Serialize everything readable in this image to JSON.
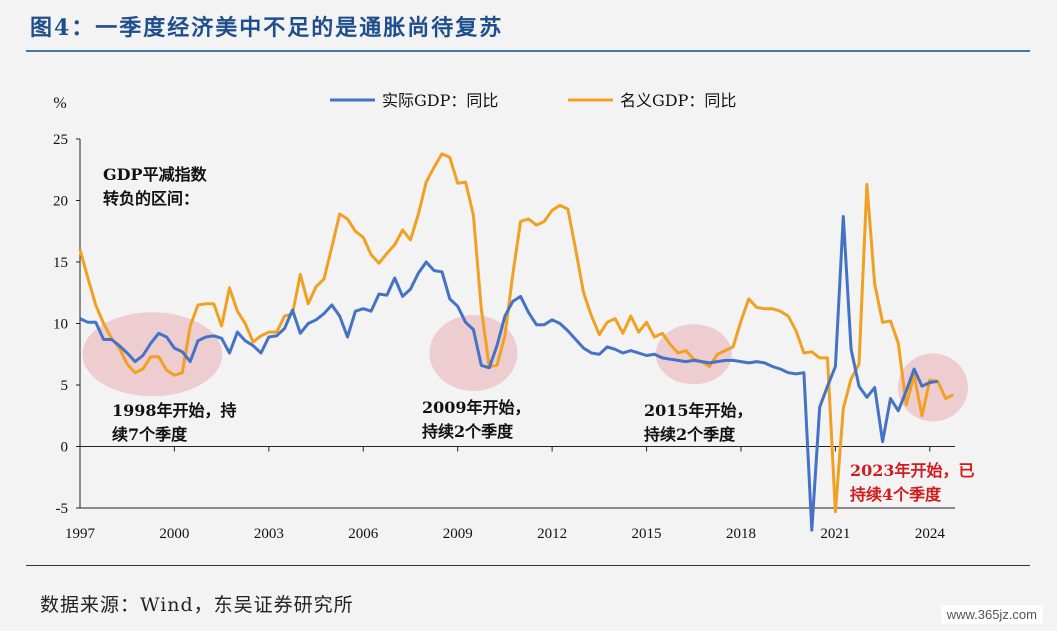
{
  "title": "图4：一季度经济美中不足的是通胀尚待复苏",
  "source": "数据来源：Wind，东吴证券研究所",
  "watermark": "www.365jz.com",
  "chart_data": {
    "type": "line",
    "ylabel": "%",
    "ylim": [
      -5,
      25
    ],
    "yticks": [
      -5,
      0,
      5,
      10,
      15,
      20,
      25
    ],
    "xlim": [
      1997,
      2024.8
    ],
    "xticks": [
      1997,
      2000,
      2003,
      2006,
      2009,
      2012,
      2015,
      2018,
      2021,
      2024
    ],
    "legend_position": "top",
    "colors": {
      "real": "#4472c4",
      "nominal": "#f0a022",
      "highlight": "#e8a0a8"
    },
    "series": [
      {
        "name": "实际GDP：同比",
        "points": [
          [
            1997.0,
            10.4
          ],
          [
            1997.25,
            10.1
          ],
          [
            1997.5,
            10.1
          ],
          [
            1997.75,
            8.7
          ],
          [
            1998.0,
            8.7
          ],
          [
            1998.25,
            8.2
          ],
          [
            1998.5,
            7.6
          ],
          [
            1998.75,
            6.9
          ],
          [
            1999.0,
            7.4
          ],
          [
            1999.25,
            8.4
          ],
          [
            1999.5,
            9.2
          ],
          [
            1999.75,
            8.9
          ],
          [
            2000.0,
            8.0
          ],
          [
            2000.25,
            7.7
          ],
          [
            2000.5,
            6.9
          ],
          [
            2000.75,
            8.6
          ],
          [
            2001.0,
            8.9
          ],
          [
            2001.25,
            9.0
          ],
          [
            2001.5,
            8.8
          ],
          [
            2001.75,
            7.6
          ],
          [
            2002.0,
            9.3
          ],
          [
            2002.25,
            8.6
          ],
          [
            2002.5,
            8.2
          ],
          [
            2002.75,
            7.6
          ],
          [
            2003.0,
            8.9
          ],
          [
            2003.25,
            9.0
          ],
          [
            2003.5,
            9.6
          ],
          [
            2003.75,
            11.1
          ],
          [
            2004.0,
            9.2
          ],
          [
            2004.25,
            10.0
          ],
          [
            2004.5,
            10.3
          ],
          [
            2004.75,
            10.8
          ],
          [
            2005.0,
            11.5
          ],
          [
            2005.25,
            10.6
          ],
          [
            2005.5,
            8.9
          ],
          [
            2005.75,
            11.0
          ],
          [
            2006.0,
            11.2
          ],
          [
            2006.25,
            11.0
          ],
          [
            2006.5,
            12.4
          ],
          [
            2006.75,
            12.3
          ],
          [
            2007.0,
            13.7
          ],
          [
            2007.25,
            12.2
          ],
          [
            2007.5,
            12.8
          ],
          [
            2007.75,
            14.1
          ],
          [
            2008.0,
            15.0
          ],
          [
            2008.25,
            14.3
          ],
          [
            2008.5,
            14.2
          ],
          [
            2008.75,
            12.0
          ],
          [
            2009.0,
            11.4
          ],
          [
            2009.25,
            10.1
          ],
          [
            2009.5,
            9.5
          ],
          [
            2009.75,
            6.6
          ],
          [
            2010.0,
            6.4
          ],
          [
            2010.25,
            8.2
          ],
          [
            2010.5,
            10.6
          ],
          [
            2010.75,
            11.8
          ],
          [
            2011.0,
            12.2
          ],
          [
            2011.25,
            10.9
          ],
          [
            2011.5,
            9.9
          ],
          [
            2011.75,
            9.9
          ],
          [
            2012.0,
            10.3
          ],
          [
            2012.25,
            10.0
          ],
          [
            2012.5,
            9.4
          ],
          [
            2012.75,
            8.7
          ],
          [
            2013.0,
            8.0
          ],
          [
            2013.25,
            7.6
          ],
          [
            2013.5,
            7.5
          ],
          [
            2013.75,
            8.1
          ],
          [
            2014.0,
            7.9
          ],
          [
            2014.25,
            7.6
          ],
          [
            2014.5,
            7.8
          ],
          [
            2014.75,
            7.6
          ],
          [
            2015.0,
            7.4
          ],
          [
            2015.25,
            7.5
          ],
          [
            2015.5,
            7.2
          ],
          [
            2015.75,
            7.1
          ],
          [
            2016.0,
            7.0
          ],
          [
            2016.25,
            6.9
          ],
          [
            2016.5,
            7.0
          ],
          [
            2016.75,
            6.9
          ],
          [
            2017.0,
            6.8
          ],
          [
            2017.25,
            6.9
          ],
          [
            2017.5,
            7.0
          ],
          [
            2017.75,
            7.0
          ],
          [
            2018.0,
            6.9
          ],
          [
            2018.25,
            6.8
          ],
          [
            2018.5,
            6.9
          ],
          [
            2018.75,
            6.8
          ],
          [
            2019.0,
            6.5
          ],
          [
            2019.25,
            6.3
          ],
          [
            2019.5,
            6.0
          ],
          [
            2019.75,
            5.9
          ],
          [
            2020.0,
            6.0
          ],
          [
            2020.25,
            -6.8
          ],
          [
            2020.5,
            3.2
          ],
          [
            2020.75,
            4.9
          ],
          [
            2021.0,
            6.5
          ],
          [
            2021.25,
            18.7
          ],
          [
            2021.5,
            7.9
          ],
          [
            2021.75,
            4.9
          ],
          [
            2022.0,
            4.0
          ],
          [
            2022.25,
            4.8
          ],
          [
            2022.5,
            0.4
          ],
          [
            2022.75,
            3.9
          ],
          [
            2023.0,
            2.9
          ],
          [
            2023.25,
            4.5
          ],
          [
            2023.5,
            6.3
          ],
          [
            2023.75,
            4.9
          ],
          [
            2024.0,
            5.2
          ],
          [
            2024.25,
            5.3
          ]
        ]
      },
      {
        "name": "名义GDP：同比",
        "points": [
          [
            1997.0,
            16.0
          ],
          [
            1997.25,
            13.7
          ],
          [
            1997.5,
            11.5
          ],
          [
            1997.75,
            10.0
          ],
          [
            1998.0,
            8.8
          ],
          [
            1998.25,
            8.0
          ],
          [
            1998.5,
            6.7
          ],
          [
            1998.75,
            6.0
          ],
          [
            1999.0,
            6.3
          ],
          [
            1999.25,
            7.3
          ],
          [
            1999.5,
            7.3
          ],
          [
            1999.75,
            6.2
          ],
          [
            2000.0,
            5.8
          ],
          [
            2000.25,
            6.0
          ],
          [
            2000.5,
            9.8
          ],
          [
            2000.75,
            11.5
          ],
          [
            2001.0,
            11.6
          ],
          [
            2001.25,
            11.6
          ],
          [
            2001.5,
            9.8
          ],
          [
            2001.75,
            12.9
          ],
          [
            2002.0,
            11.0
          ],
          [
            2002.25,
            10.0
          ],
          [
            2002.5,
            8.5
          ],
          [
            2002.75,
            9.0
          ],
          [
            2003.0,
            9.3
          ],
          [
            2003.25,
            9.3
          ],
          [
            2003.5,
            10.6
          ],
          [
            2003.75,
            10.8
          ],
          [
            2004.0,
            14.0
          ],
          [
            2004.25,
            11.6
          ],
          [
            2004.5,
            13.0
          ],
          [
            2004.75,
            13.6
          ],
          [
            2005.0,
            16.2
          ],
          [
            2005.25,
            18.9
          ],
          [
            2005.5,
            18.5
          ],
          [
            2005.75,
            17.5
          ],
          [
            2006.0,
            17.0
          ],
          [
            2006.25,
            15.6
          ],
          [
            2006.5,
            14.9
          ],
          [
            2006.75,
            15.7
          ],
          [
            2007.0,
            16.4
          ],
          [
            2007.25,
            17.6
          ],
          [
            2007.5,
            16.8
          ],
          [
            2007.75,
            18.9
          ],
          [
            2008.0,
            21.5
          ],
          [
            2008.25,
            22.7
          ],
          [
            2008.5,
            23.8
          ],
          [
            2008.75,
            23.5
          ],
          [
            2009.0,
            21.4
          ],
          [
            2009.25,
            21.5
          ],
          [
            2009.5,
            18.8
          ],
          [
            2009.75,
            11.2
          ],
          [
            2010.0,
            6.5
          ],
          [
            2010.25,
            6.6
          ],
          [
            2010.5,
            9.0
          ],
          [
            2010.75,
            14.0
          ],
          [
            2011.0,
            18.3
          ],
          [
            2011.25,
            18.5
          ],
          [
            2011.5,
            18.0
          ],
          [
            2011.75,
            18.3
          ],
          [
            2012.0,
            19.2
          ],
          [
            2012.25,
            19.6
          ],
          [
            2012.5,
            19.3
          ],
          [
            2012.75,
            16.0
          ],
          [
            2013.0,
            12.5
          ],
          [
            2013.25,
            10.6
          ],
          [
            2013.5,
            9.1
          ],
          [
            2013.75,
            10.1
          ],
          [
            2014.0,
            10.4
          ],
          [
            2014.25,
            9.2
          ],
          [
            2014.5,
            10.6
          ],
          [
            2014.75,
            9.3
          ],
          [
            2015.0,
            10.1
          ],
          [
            2015.25,
            8.9
          ],
          [
            2015.5,
            9.2
          ],
          [
            2015.75,
            8.3
          ],
          [
            2016.0,
            7.6
          ],
          [
            2016.25,
            7.8
          ],
          [
            2016.5,
            7.1
          ],
          [
            2016.75,
            6.9
          ],
          [
            2017.0,
            6.5
          ],
          [
            2017.25,
            7.5
          ],
          [
            2017.5,
            7.8
          ],
          [
            2017.75,
            8.1
          ],
          [
            2018.0,
            10.2
          ],
          [
            2018.25,
            12.0
          ],
          [
            2018.5,
            11.3
          ],
          [
            2018.75,
            11.2
          ],
          [
            2019.0,
            11.2
          ],
          [
            2019.25,
            11.0
          ],
          [
            2019.5,
            10.6
          ],
          [
            2019.75,
            9.4
          ],
          [
            2020.0,
            7.6
          ],
          [
            2020.25,
            7.7
          ],
          [
            2020.5,
            7.2
          ],
          [
            2020.75,
            7.2
          ],
          [
            2021.0,
            -5.3
          ],
          [
            2021.25,
            3.1
          ],
          [
            2021.5,
            5.5
          ],
          [
            2021.75,
            6.7
          ],
          [
            2022.0,
            21.3
          ],
          [
            2022.25,
            13.2
          ],
          [
            2022.5,
            10.1
          ],
          [
            2022.75,
            10.2
          ],
          [
            2023.0,
            8.4
          ],
          [
            2023.25,
            3.4
          ],
          [
            2023.5,
            5.8
          ],
          [
            2023.75,
            2.5
          ],
          [
            2024.0,
            5.4
          ],
          [
            2024.25,
            5.3
          ],
          [
            2024.5,
            3.9
          ],
          [
            2024.75,
            4.2
          ]
        ]
      }
    ],
    "annotations": [
      {
        "id": "deflator-label",
        "lines": [
          "GDP平减指数",
          "转负的区间："
        ]
      },
      {
        "id": "period-1998",
        "lines": [
          "1998年开始，持",
          "续7个季度"
        ],
        "ellipse_center": [
          1999.3,
          7.5
        ]
      },
      {
        "id": "period-2009",
        "lines": [
          "2009年开始，",
          "持续2个季度"
        ],
        "ellipse_center": [
          2009.5,
          7.6
        ]
      },
      {
        "id": "period-2015",
        "lines": [
          "2015年开始，",
          "持续2个季度"
        ],
        "ellipse_center": [
          2016.5,
          7.5
        ]
      },
      {
        "id": "period-2023",
        "lines": [
          "2023年开始，已",
          "持续4个季度"
        ],
        "ellipse_center": [
          2024.1,
          4.8
        ],
        "highlight": true
      }
    ]
  }
}
